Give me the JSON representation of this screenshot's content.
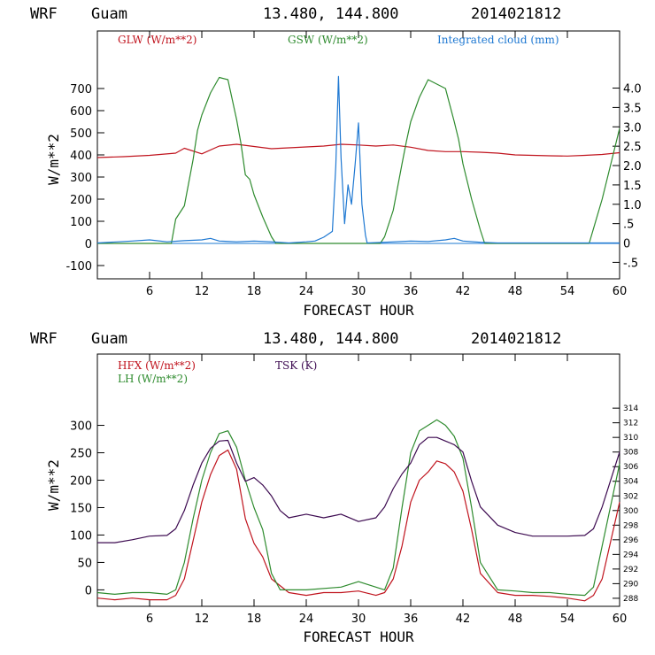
{
  "colors": {
    "red": "#c0141e",
    "green": "#2e8b2e",
    "blue": "#1e78d2",
    "purple": "#3c0a50",
    "axis": "#000000"
  },
  "chart_data": [
    {
      "type": "line",
      "header": {
        "model": "WRF",
        "site": "Guam",
        "coords": "13.480, 144.800",
        "run": "2014021812"
      },
      "xlabel": "FORECAST HOUR",
      "ylabel": "W/m**2",
      "xlim": [
        0,
        60
      ],
      "ylim": [
        -160,
        960
      ],
      "y2lim": [
        -0.925,
        5.475
      ],
      "x_ticks": [
        6,
        12,
        18,
        24,
        30,
        36,
        42,
        48,
        54,
        60
      ],
      "y_ticks": [
        -100,
        0,
        100,
        200,
        300,
        400,
        500,
        600,
        700
      ],
      "y2_ticks": [
        -0.5,
        0,
        0.5,
        1.0,
        1.5,
        2.0,
        2.5,
        3.0,
        3.5,
        4.0
      ],
      "y2_tick_labels": [
        "-.5",
        "0",
        ".5",
        "1.0",
        "1.5",
        "2.0",
        "2.5",
        "3.0",
        "3.5",
        "4.0"
      ],
      "series": [
        {
          "name": "GLW (W/m**2)",
          "color": "red",
          "axis": "left",
          "x": [
            0,
            3,
            6,
            9,
            10,
            12,
            14,
            16,
            18,
            20,
            22,
            24,
            26,
            28,
            30,
            32,
            34,
            36,
            38,
            40,
            42,
            44,
            46,
            48,
            50,
            52,
            54,
            56,
            58,
            60
          ],
          "y": [
            388,
            392,
            398,
            408,
            430,
            405,
            440,
            448,
            438,
            428,
            432,
            436,
            440,
            448,
            445,
            440,
            445,
            435,
            420,
            415,
            415,
            412,
            408,
            400,
            398,
            396,
            395,
            398,
            402,
            410
          ]
        },
        {
          "name": "GSW (W/m**2)",
          "color": "green",
          "axis": "left",
          "x": [
            0,
            8.5,
            9,
            10,
            11,
            11.5,
            12,
            13,
            14,
            15,
            16,
            16.5,
            17,
            17.5,
            18,
            19,
            20,
            20.5,
            32.5,
            33,
            34,
            35,
            35.5,
            36,
            37,
            38,
            39,
            40,
            41,
            41.5,
            42,
            43,
            44,
            44.5,
            56.5,
            58,
            60
          ],
          "y": [
            0,
            0,
            110,
            170,
            380,
            510,
            580,
            680,
            750,
            740,
            560,
            450,
            310,
            290,
            220,
            120,
            30,
            0,
            0,
            30,
            150,
            360,
            460,
            550,
            660,
            740,
            720,
            700,
            550,
            470,
            360,
            200,
            60,
            0,
            0,
            200,
            520
          ]
        },
        {
          "name": "Integrated cloud (mm)",
          "color": "blue",
          "axis": "right",
          "x": [
            0,
            4,
            6,
            8,
            10,
            12,
            13,
            14,
            16,
            18,
            20,
            22,
            24,
            25,
            26,
            27,
            27.4,
            27.7,
            28,
            28.4,
            28.8,
            29.2,
            29.6,
            30,
            30.4,
            30.8,
            31,
            33,
            36,
            38,
            40,
            41,
            42,
            44,
            46,
            48,
            50,
            52,
            54,
            56,
            58,
            60
          ],
          "y": [
            0,
            0.05,
            0.08,
            0.03,
            0.06,
            0.08,
            0.12,
            0.05,
            0.03,
            0.05,
            0.03,
            0.0,
            0.03,
            0.05,
            0.15,
            0.3,
            2.0,
            4.3,
            2.2,
            0.5,
            1.5,
            1.0,
            2.0,
            3.1,
            1.0,
            0.2,
            0.0,
            0.02,
            0.05,
            0.04,
            0.08,
            0.12,
            0.05,
            0.02,
            0.0,
            0.0,
            0.0,
            0.0,
            0.0,
            0.0,
            0.0,
            0.0
          ]
        }
      ]
    },
    {
      "type": "line",
      "header": {
        "model": "WRF",
        "site": "Guam",
        "coords": "13.480, 144.800",
        "run": "2014021812"
      },
      "xlabel": "FORECAST HOUR",
      "ylabel": "W/m**2",
      "xlim": [
        0,
        60
      ],
      "ylim": [
        -30,
        430
      ],
      "y2lim": [
        286.9,
        321.4
      ],
      "x_ticks": [
        6,
        12,
        18,
        24,
        30,
        36,
        42,
        48,
        54,
        60
      ],
      "y_ticks": [
        0,
        50,
        100,
        150,
        200,
        250,
        300
      ],
      "y2_ticks": [
        288,
        290,
        292,
        294,
        296,
        298,
        300,
        302,
        304,
        306,
        308,
        310,
        312,
        314
      ],
      "series": [
        {
          "name": "HFX (W/m**2)",
          "color": "red",
          "axis": "left",
          "x": [
            0,
            2,
            4,
            6,
            8,
            9,
            10,
            11,
            12,
            13,
            14,
            15,
            16,
            17,
            18,
            19,
            20,
            22,
            24,
            26,
            28,
            30,
            32,
            33,
            34,
            35,
            36,
            37,
            38,
            39,
            40,
            41,
            42,
            43,
            44,
            46,
            48,
            50,
            52,
            54,
            56,
            57,
            58,
            60
          ],
          "y": [
            -15,
            -18,
            -15,
            -18,
            -18,
            -10,
            20,
            90,
            160,
            210,
            245,
            255,
            220,
            130,
            85,
            60,
            20,
            -5,
            -10,
            -5,
            -5,
            -2,
            -10,
            -5,
            20,
            80,
            160,
            200,
            215,
            235,
            230,
            215,
            180,
            110,
            30,
            -5,
            -10,
            -10,
            -12,
            -15,
            -20,
            -10,
            20,
            160
          ]
        },
        {
          "name": "LH (W/m**2)",
          "color": "green",
          "axis": "left",
          "x": [
            0,
            2,
            4,
            6,
            8,
            9,
            10,
            11,
            12,
            13,
            14,
            15,
            16,
            17,
            18,
            19,
            20,
            21,
            24,
            28,
            30,
            32,
            33,
            34,
            35,
            36,
            37,
            38,
            39,
            40,
            41,
            42,
            43,
            44,
            46,
            48,
            50,
            52,
            54,
            56,
            57,
            58,
            60
          ],
          "y": [
            -5,
            -8,
            -5,
            -5,
            -8,
            0,
            50,
            130,
            200,
            250,
            285,
            290,
            260,
            200,
            150,
            110,
            30,
            0,
            0,
            5,
            15,
            5,
            0,
            40,
            150,
            250,
            290,
            300,
            310,
            300,
            280,
            240,
            150,
            50,
            0,
            -2,
            -5,
            -5,
            -8,
            -10,
            5,
            80,
            230
          ]
        },
        {
          "name": "TSK (K)",
          "color": "purple",
          "axis": "right",
          "x": [
            0,
            2,
            4,
            6,
            8,
            9,
            10,
            11,
            12,
            13,
            14,
            15,
            16,
            17,
            18,
            19,
            20,
            21,
            22,
            24,
            26,
            28,
            30,
            32,
            33,
            34,
            35,
            36,
            37,
            38,
            39,
            40,
            41,
            42,
            43,
            44,
            46,
            48,
            50,
            52,
            54,
            56,
            57,
            58,
            60
          ],
          "y": [
            295.6,
            295.6,
            296.0,
            296.5,
            296.6,
            297.5,
            300.0,
            303.5,
            306.5,
            308.5,
            309.5,
            309.6,
            306.5,
            304.0,
            304.5,
            303.5,
            302.0,
            300.0,
            299.0,
            299.5,
            299.0,
            299.5,
            298.5,
            299.0,
            300.5,
            303.0,
            305.0,
            306.5,
            309.0,
            310.0,
            310.0,
            309.5,
            309.0,
            308.0,
            304.0,
            300.5,
            298.0,
            297.0,
            296.5,
            296.5,
            296.5,
            296.6,
            297.5,
            300.5,
            308.0
          ]
        }
      ]
    }
  ]
}
